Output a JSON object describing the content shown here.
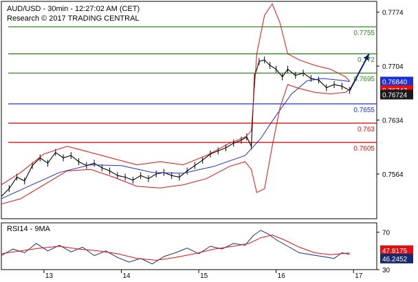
{
  "chart_data": [
    {
      "type": "line",
      "title": "AUD/USD - 30min - 12:27:02 AM (CET)",
      "subtitle": "Research © 2017 TRADING CENTRAL",
      "ylim": [
        0.7506,
        0.7788
      ],
      "xlim": [
        12.45,
        17.3
      ],
      "yticks": [
        "0.7774",
        "0.7704",
        "0.7634",
        "0.7564"
      ],
      "yticks_values": [
        0.7774,
        0.7704,
        0.7634,
        0.7564
      ],
      "xticks": [
        "13",
        "14",
        "15",
        "16",
        "17"
      ],
      "xticks_values": [
        13,
        14,
        15,
        16,
        17
      ],
      "grid": false,
      "levels": [
        {
          "label": "0.7755",
          "value": 0.7755,
          "color": "#2e8b1f"
        },
        {
          "label": "0.772",
          "value": 0.772,
          "color": "#2e8b1f"
        },
        {
          "label": "0.7695",
          "value": 0.7695,
          "color": "#2e8b1f"
        },
        {
          "label": "0.7655",
          "value": 0.7655,
          "color": "#1f2fd0"
        },
        {
          "label": "0.763",
          "value": 0.763,
          "color": "#e01010"
        },
        {
          "label": "0.7605",
          "value": 0.7605,
          "color": "#e01010"
        }
      ],
      "price_tags": [
        {
          "label": "0.76840",
          "value": 0.7684,
          "color": "#1f2fd0"
        },
        {
          "label": "0.76747",
          "value": 0.76747,
          "color": "#e01010"
        },
        {
          "label": "0.76724",
          "value": 0.76724,
          "color": "#1a1a1a"
        }
      ],
      "series": [
        {
          "kind": "price",
          "x": [
            12.45,
            12.55,
            12.65,
            12.75,
            12.85,
            12.95,
            13.05,
            13.15,
            13.25,
            13.35,
            13.45,
            13.55,
            13.65,
            13.75,
            13.85,
            13.95,
            14.05,
            14.15,
            14.25,
            14.35,
            14.45,
            14.55,
            14.65,
            14.75,
            14.85,
            14.95,
            15.05,
            15.15,
            15.25,
            15.35,
            15.45,
            15.55,
            15.62,
            15.68,
            15.72,
            15.78,
            15.85,
            15.92,
            16.0,
            16.08,
            16.15,
            16.25,
            16.35,
            16.45,
            16.55,
            16.65,
            16.75,
            16.85,
            16.95
          ],
          "values": [
            0.7535,
            0.7545,
            0.756,
            0.7555,
            0.7575,
            0.7585,
            0.7578,
            0.7592,
            0.7585,
            0.7588,
            0.758,
            0.7575,
            0.7578,
            0.7572,
            0.7568,
            0.7562,
            0.756,
            0.7556,
            0.7562,
            0.7558,
            0.7564,
            0.7566,
            0.7562,
            0.756,
            0.7568,
            0.7575,
            0.7582,
            0.759,
            0.7594,
            0.7598,
            0.7604,
            0.7608,
            0.7612,
            0.76,
            0.769,
            0.771,
            0.7712,
            0.7705,
            0.77,
            0.769,
            0.77,
            0.7692,
            0.7695,
            0.7688,
            0.7686,
            0.7676,
            0.768,
            0.7678,
            0.76724
          ],
          "color": "#000000"
        },
        {
          "kind": "moving-average",
          "x": [
            12.45,
            12.8,
            13.2,
            13.6,
            14.0,
            14.4,
            14.8,
            15.2,
            15.6,
            15.8,
            16.0,
            16.2,
            16.4,
            16.6,
            16.8,
            16.95
          ],
          "values": [
            0.7532,
            0.7548,
            0.7566,
            0.7576,
            0.7575,
            0.7566,
            0.7565,
            0.7574,
            0.7588,
            0.761,
            0.764,
            0.7668,
            0.7685,
            0.7688,
            0.7686,
            0.7684
          ],
          "color": "#1f2fd0"
        },
        {
          "kind": "upper-band",
          "x": [
            12.45,
            12.7,
            13.0,
            13.3,
            13.6,
            13.9,
            14.2,
            14.5,
            14.8,
            15.1,
            15.4,
            15.6,
            15.68,
            15.75,
            15.85,
            15.95,
            16.05,
            16.15,
            16.3,
            16.5,
            16.7,
            16.9,
            16.95
          ],
          "values": [
            0.755,
            0.7566,
            0.759,
            0.76,
            0.7592,
            0.7584,
            0.7576,
            0.758,
            0.7576,
            0.7588,
            0.7604,
            0.7612,
            0.762,
            0.772,
            0.777,
            0.7785,
            0.776,
            0.772,
            0.7712,
            0.7705,
            0.77,
            0.769,
            0.7684
          ],
          "color": "#e01010"
        },
        {
          "kind": "lower-band",
          "x": [
            12.45,
            12.7,
            13.0,
            13.3,
            13.6,
            13.9,
            14.2,
            14.5,
            14.8,
            15.1,
            15.4,
            15.6,
            15.68,
            15.75,
            15.85,
            15.95,
            16.05,
            16.15,
            16.3,
            16.5,
            16.7,
            16.9,
            16.95
          ],
          "values": [
            0.7525,
            0.7532,
            0.755,
            0.7568,
            0.757,
            0.756,
            0.7548,
            0.7546,
            0.755,
            0.7558,
            0.7574,
            0.758,
            0.757,
            0.754,
            0.7545,
            0.76,
            0.765,
            0.768,
            0.7675,
            0.767,
            0.7668,
            0.767,
            0.7674
          ],
          "color": "#e01010"
        },
        {
          "kind": "projection-arrow",
          "x": [
            16.95,
            17.2
          ],
          "values": [
            0.76724,
            0.772
          ],
          "color": "#0b1e6b"
        }
      ]
    },
    {
      "type": "line",
      "title": "RSI14 - 9MA",
      "ylim": [
        30,
        80
      ],
      "xlim": [
        12.45,
        17.3
      ],
      "yticks": [
        "70",
        "30"
      ],
      "yticks_values": [
        70,
        30
      ],
      "price_tags": [
        {
          "label": "47.8175",
          "value": 47.8175,
          "color": "#e01010"
        },
        {
          "label": "46.2452",
          "value": 46.2452,
          "color": "#1a2b6d"
        }
      ],
      "series": [
        {
          "kind": "rsi",
          "x": [
            12.45,
            12.6,
            12.75,
            12.9,
            13.05,
            13.2,
            13.35,
            13.5,
            13.65,
            13.8,
            13.95,
            14.1,
            14.25,
            14.4,
            14.55,
            14.7,
            14.85,
            15.0,
            15.15,
            15.3,
            15.45,
            15.6,
            15.7,
            15.8,
            15.9,
            16.0,
            16.15,
            16.3,
            16.45,
            16.6,
            16.75,
            16.85,
            16.95
          ],
          "values": [
            45,
            52,
            48,
            58,
            50,
            56,
            49,
            54,
            45,
            50,
            43,
            38,
            42,
            36,
            44,
            48,
            53,
            47,
            55,
            52,
            58,
            56,
            66,
            72,
            68,
            62,
            55,
            48,
            46,
            44,
            42,
            48,
            46.2452
          ],
          "color": "#1a2b6d"
        },
        {
          "kind": "rsi-ma",
          "x": [
            12.45,
            12.7,
            12.95,
            13.2,
            13.45,
            13.7,
            13.95,
            14.2,
            14.45,
            14.7,
            14.95,
            15.2,
            15.45,
            15.65,
            15.8,
            15.95,
            16.1,
            16.3,
            16.5,
            16.7,
            16.95
          ],
          "values": [
            47,
            50,
            53,
            55,
            52,
            50,
            47,
            42,
            40,
            43,
            47,
            52,
            55,
            58,
            64,
            67,
            62,
            54,
            48,
            46,
            47.8175
          ],
          "color": "#e01010"
        }
      ]
    }
  ],
  "colors": {
    "support": "#e01010",
    "resistance": "#2e8b1f",
    "pivot": "#1f2fd0",
    "arrow": "#0b1e6b",
    "frame": "#000000"
  }
}
